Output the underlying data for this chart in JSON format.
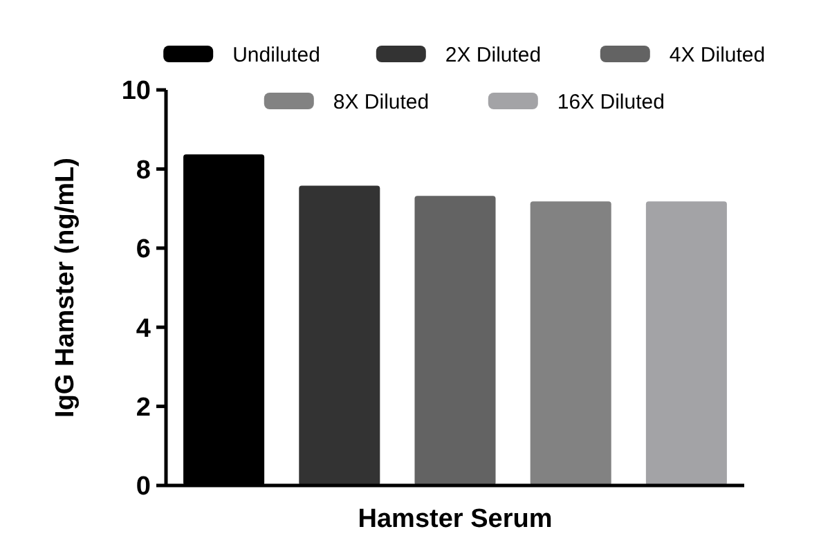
{
  "chart_data": {
    "type": "bar",
    "categories": [
      null
    ],
    "xlabel": "Hamster Serum",
    "ylabel": "IgG Hamster (ng/mL)",
    "ylim": [
      0,
      10
    ],
    "yticks": [
      0,
      2,
      4,
      6,
      8,
      10
    ],
    "grid": false,
    "legend": "top",
    "series": [
      {
        "name": "Undiluted",
        "color": "#000000",
        "values": [
          8.37
        ]
      },
      {
        "name": "2X Diluted",
        "color": "#333333",
        "values": [
          7.58
        ]
      },
      {
        "name": "4X Diluted",
        "color": "#636363",
        "values": [
          7.32
        ]
      },
      {
        "name": "8X Diluted",
        "color": "#828282",
        "values": [
          7.18
        ]
      },
      {
        "name": "16X Diluted",
        "color": "#a3a3a6",
        "values": [
          7.18
        ]
      }
    ]
  }
}
